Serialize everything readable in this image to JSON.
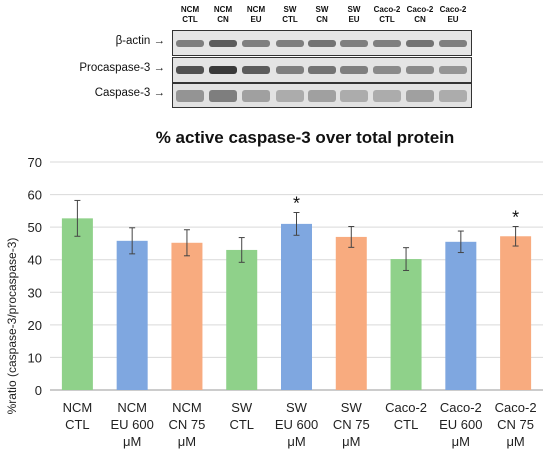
{
  "blot": {
    "lanes": [
      {
        "l1": "NCM",
        "l2": "CTL"
      },
      {
        "l1": "NCM",
        "l2": "CN"
      },
      {
        "l1": "NCM",
        "l2": "EU"
      },
      {
        "l1": "SW",
        "l2": "CTL"
      },
      {
        "l1": "SW",
        "l2": "CN"
      },
      {
        "l1": "SW",
        "l2": "EU"
      },
      {
        "l1": "Caco-2",
        "l2": "CTL"
      },
      {
        "l1": "Caco-2",
        "l2": "CN"
      },
      {
        "l1": "Caco-2",
        "l2": "EU"
      }
    ],
    "rows": [
      {
        "label": "β-actin →"
      },
      {
        "label": "Procaspase-3 →"
      },
      {
        "label": "Caspase-3 →"
      }
    ]
  },
  "chart_data": {
    "type": "bar",
    "title": "% active caspase-3 over total protein",
    "ylabel": "%ratio (caspase-3/procaspase-3)",
    "ylim": [
      0,
      70
    ],
    "yticks": [
      0,
      10,
      20,
      30,
      40,
      50,
      60,
      70
    ],
    "grid": true,
    "categories": [
      [
        "NCM",
        "CTL"
      ],
      [
        "NCM",
        "EU 600",
        "μM"
      ],
      [
        "NCM",
        "CN 75",
        "μM"
      ],
      [
        "SW",
        "CTL"
      ],
      [
        "SW",
        "EU 600",
        "μM"
      ],
      [
        "SW",
        "CN 75",
        "μM"
      ],
      [
        "Caco-2",
        "CTL"
      ],
      [
        "Caco-2",
        "EU 600",
        "μM"
      ],
      [
        "Caco-2",
        "CN 75",
        "μM"
      ]
    ],
    "values": [
      52.7,
      45.8,
      45.2,
      43.0,
      51.0,
      47.0,
      40.2,
      45.5,
      47.2
    ],
    "errors": [
      5.5,
      4.0,
      4.0,
      3.8,
      3.5,
      3.2,
      3.5,
      3.3,
      3.0
    ],
    "significance": [
      "",
      "",
      "",
      "",
      "*",
      "",
      "",
      "",
      "*"
    ],
    "colors": [
      "#8fd18a",
      "#7fa7e0",
      "#f8ab7f",
      "#8fd18a",
      "#7fa7e0",
      "#f8ab7f",
      "#8fd18a",
      "#7fa7e0",
      "#f8ab7f"
    ]
  }
}
